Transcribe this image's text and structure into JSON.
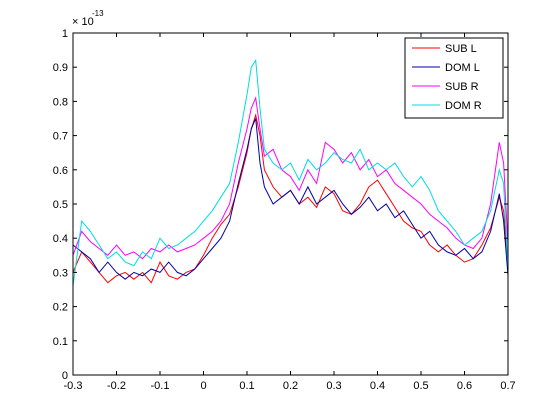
{
  "chart_data": {
    "type": "line",
    "title": "",
    "xlabel": "",
    "ylabel": "",
    "xlim": [
      -0.3,
      0.7
    ],
    "ylim": [
      0,
      1.0
    ],
    "y_multiplier_label": "× 10",
    "y_multiplier_exponent": "-13",
    "grid": false,
    "legend_position": "top-right",
    "x_ticks": [
      -0.3,
      -0.2,
      -0.1,
      0,
      0.1,
      0.2,
      0.3,
      0.4,
      0.5,
      0.6,
      0.7
    ],
    "x_tick_labels": [
      "-0.3",
      "-0.2",
      "-0.1",
      "0",
      "0.1",
      "0.2",
      "0.3",
      "0.4",
      "0.5",
      "0.6",
      "0.7"
    ],
    "y_ticks": [
      0,
      0.1,
      0.2,
      0.3,
      0.4,
      0.5,
      0.6,
      0.7,
      0.8,
      0.9,
      1.0
    ],
    "y_tick_labels": [
      "0",
      "0.1",
      "0.2",
      "0.3",
      "0.4",
      "0.5",
      "0.6",
      "0.7",
      "0.8",
      "0.9",
      "1"
    ],
    "series": [
      {
        "name": "SUB L",
        "color": "#ff0000",
        "x": [
          -0.3,
          -0.28,
          -0.26,
          -0.24,
          -0.22,
          -0.2,
          -0.18,
          -0.16,
          -0.14,
          -0.12,
          -0.1,
          -0.08,
          -0.06,
          -0.04,
          -0.02,
          0,
          0.02,
          0.04,
          0.06,
          0.08,
          0.1,
          0.11,
          0.12,
          0.13,
          0.14,
          0.16,
          0.18,
          0.2,
          0.22,
          0.24,
          0.26,
          0.28,
          0.3,
          0.32,
          0.34,
          0.36,
          0.38,
          0.4,
          0.42,
          0.44,
          0.46,
          0.48,
          0.5,
          0.52,
          0.54,
          0.56,
          0.58,
          0.6,
          0.62,
          0.64,
          0.66,
          0.68,
          0.69,
          0.7
        ],
        "y": [
          0.3,
          0.36,
          0.33,
          0.3,
          0.27,
          0.29,
          0.3,
          0.28,
          0.3,
          0.27,
          0.33,
          0.29,
          0.28,
          0.3,
          0.31,
          0.35,
          0.4,
          0.44,
          0.47,
          0.55,
          0.65,
          0.72,
          0.76,
          0.7,
          0.6,
          0.55,
          0.52,
          0.54,
          0.5,
          0.52,
          0.49,
          0.55,
          0.53,
          0.48,
          0.47,
          0.5,
          0.55,
          0.57,
          0.53,
          0.49,
          0.45,
          0.43,
          0.42,
          0.38,
          0.36,
          0.38,
          0.35,
          0.33,
          0.34,
          0.38,
          0.43,
          0.52,
          0.48,
          0.32
        ]
      },
      {
        "name": "DOM L",
        "color": "#0000aa",
        "x": [
          -0.3,
          -0.28,
          -0.26,
          -0.24,
          -0.22,
          -0.2,
          -0.18,
          -0.16,
          -0.14,
          -0.12,
          -0.1,
          -0.08,
          -0.06,
          -0.04,
          -0.02,
          0,
          0.02,
          0.04,
          0.06,
          0.08,
          0.1,
          0.11,
          0.12,
          0.13,
          0.14,
          0.16,
          0.18,
          0.2,
          0.22,
          0.24,
          0.26,
          0.28,
          0.3,
          0.32,
          0.34,
          0.36,
          0.38,
          0.4,
          0.42,
          0.44,
          0.46,
          0.48,
          0.5,
          0.52,
          0.54,
          0.56,
          0.58,
          0.6,
          0.62,
          0.64,
          0.66,
          0.68,
          0.69,
          0.7
        ],
        "y": [
          0.38,
          0.36,
          0.34,
          0.3,
          0.33,
          0.3,
          0.28,
          0.3,
          0.29,
          0.31,
          0.3,
          0.33,
          0.3,
          0.29,
          0.31,
          0.34,
          0.37,
          0.4,
          0.45,
          0.56,
          0.66,
          0.72,
          0.75,
          0.62,
          0.55,
          0.5,
          0.52,
          0.54,
          0.5,
          0.55,
          0.5,
          0.52,
          0.54,
          0.5,
          0.47,
          0.49,
          0.52,
          0.48,
          0.5,
          0.46,
          0.48,
          0.44,
          0.4,
          0.42,
          0.38,
          0.36,
          0.35,
          0.37,
          0.34,
          0.36,
          0.42,
          0.53,
          0.45,
          0.29
        ]
      },
      {
        "name": "SUB R",
        "color": "#ff00ff",
        "x": [
          -0.3,
          -0.28,
          -0.26,
          -0.24,
          -0.22,
          -0.2,
          -0.18,
          -0.16,
          -0.14,
          -0.12,
          -0.1,
          -0.08,
          -0.06,
          -0.04,
          -0.02,
          0,
          0.02,
          0.04,
          0.06,
          0.08,
          0.1,
          0.11,
          0.12,
          0.13,
          0.14,
          0.16,
          0.18,
          0.2,
          0.22,
          0.24,
          0.26,
          0.28,
          0.3,
          0.32,
          0.34,
          0.36,
          0.38,
          0.4,
          0.42,
          0.44,
          0.46,
          0.48,
          0.5,
          0.52,
          0.54,
          0.56,
          0.58,
          0.6,
          0.62,
          0.64,
          0.66,
          0.68,
          0.69,
          0.7
        ],
        "y": [
          0.35,
          0.42,
          0.39,
          0.37,
          0.35,
          0.38,
          0.35,
          0.36,
          0.34,
          0.37,
          0.36,
          0.38,
          0.36,
          0.37,
          0.38,
          0.4,
          0.42,
          0.45,
          0.5,
          0.62,
          0.72,
          0.78,
          0.81,
          0.72,
          0.64,
          0.66,
          0.6,
          0.58,
          0.54,
          0.6,
          0.56,
          0.68,
          0.66,
          0.62,
          0.65,
          0.6,
          0.63,
          0.58,
          0.6,
          0.56,
          0.54,
          0.52,
          0.5,
          0.47,
          0.45,
          0.43,
          0.4,
          0.38,
          0.37,
          0.4,
          0.5,
          0.68,
          0.62,
          0.38
        ]
      },
      {
        "name": "DOM R",
        "color": "#00dddd",
        "x": [
          -0.3,
          -0.28,
          -0.26,
          -0.24,
          -0.22,
          -0.2,
          -0.18,
          -0.16,
          -0.14,
          -0.12,
          -0.1,
          -0.08,
          -0.06,
          -0.04,
          -0.02,
          0,
          0.02,
          0.04,
          0.06,
          0.08,
          0.1,
          0.11,
          0.12,
          0.13,
          0.14,
          0.16,
          0.18,
          0.2,
          0.22,
          0.24,
          0.26,
          0.28,
          0.3,
          0.32,
          0.34,
          0.36,
          0.38,
          0.4,
          0.42,
          0.44,
          0.46,
          0.48,
          0.5,
          0.52,
          0.54,
          0.56,
          0.58,
          0.6,
          0.62,
          0.64,
          0.66,
          0.68,
          0.69,
          0.7
        ],
        "y": [
          0.26,
          0.45,
          0.42,
          0.38,
          0.34,
          0.36,
          0.33,
          0.32,
          0.36,
          0.34,
          0.4,
          0.37,
          0.38,
          0.4,
          0.42,
          0.45,
          0.48,
          0.52,
          0.56,
          0.68,
          0.82,
          0.9,
          0.92,
          0.78,
          0.66,
          0.62,
          0.6,
          0.62,
          0.57,
          0.63,
          0.6,
          0.62,
          0.65,
          0.63,
          0.62,
          0.66,
          0.6,
          0.62,
          0.6,
          0.62,
          0.58,
          0.55,
          0.58,
          0.54,
          0.48,
          0.45,
          0.42,
          0.38,
          0.4,
          0.42,
          0.48,
          0.6,
          0.56,
          0.31
        ]
      }
    ]
  }
}
